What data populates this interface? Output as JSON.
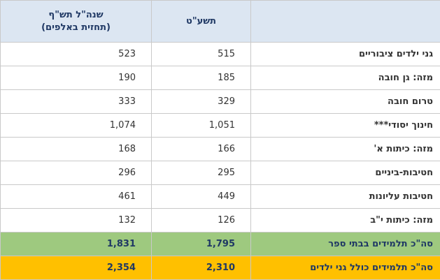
{
  "header": {
    "col_future_line1": "שנה\"ל תש\"ף",
    "col_future_line2": "(תחזית באלפים)",
    "col_current": "תשע\"ט",
    "col_label": ""
  },
  "rows": [
    {
      "label": "גני ילדים ציבוריים",
      "current": "515",
      "future": "523"
    },
    {
      "label": "מזה: גן חובה",
      "current": "185",
      "future": "190"
    },
    {
      "label": "טרום חובה",
      "current": "329",
      "future": "333"
    },
    {
      "label": "חינוך יסודי***",
      "current": "1,051",
      "future": "1,074"
    },
    {
      "label": "מזה: כיתות א'",
      "current": "166",
      "future": "168"
    },
    {
      "label": "חטיבות-ביניים",
      "current": "295",
      "future": "296"
    },
    {
      "label": "חטיבות עליונות",
      "current": "449",
      "future": "461"
    },
    {
      "label": "מזה: כיתות י\"ב",
      "current": "126",
      "future": "132"
    }
  ],
  "total_schools": {
    "label": "סה\"כ תלמידים בבתי ספר",
    "current": "1,795",
    "future": "1,831"
  },
  "total_all": {
    "label": "סה\"כ תלמידים כולל גני ילדים",
    "current": "2,310",
    "future": "2,354"
  },
  "colors": {
    "header_bg": "#dce6f2",
    "green_row": "#9ec97f",
    "gold_row": "#ffc000",
    "label_text": "#1f3864"
  }
}
